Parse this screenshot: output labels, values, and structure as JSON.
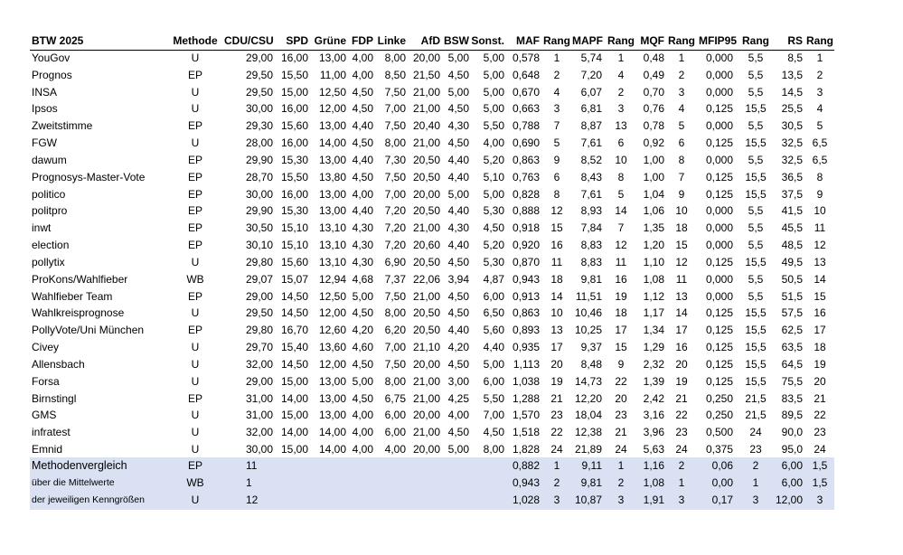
{
  "table": {
    "header": [
      "BTW 2025",
      "Methode",
      "CDU/CSU",
      "SPD",
      "Grüne",
      "FDP",
      "Linke",
      "AfD",
      "BSW",
      "Sonst.",
      "MAF",
      "Rang",
      "MAPF",
      "Rang",
      "MQF",
      "Rang",
      "MFIP95",
      "Rang",
      "RS",
      "Rang"
    ],
    "rows": [
      [
        "YouGov",
        "U",
        "29,00",
        "16,00",
        "13,00",
        "4,00",
        "8,00",
        "20,00",
        "5,00",
        "5,00",
        "0,578",
        "1",
        "5,74",
        "1",
        "0,48",
        "1",
        "0,000",
        "5,5",
        "8,5",
        "1"
      ],
      [
        "Prognos",
        "EP",
        "29,50",
        "15,50",
        "11,00",
        "4,00",
        "8,50",
        "21,50",
        "4,50",
        "5,00",
        "0,648",
        "2",
        "7,20",
        "4",
        "0,49",
        "2",
        "0,000",
        "5,5",
        "13,5",
        "2"
      ],
      [
        "INSA",
        "U",
        "29,50",
        "15,00",
        "12,50",
        "4,50",
        "7,50",
        "21,00",
        "5,00",
        "5,00",
        "0,670",
        "4",
        "6,07",
        "2",
        "0,70",
        "3",
        "0,000",
        "5,5",
        "14,5",
        "3"
      ],
      [
        "Ipsos",
        "U",
        "30,00",
        "16,00",
        "12,00",
        "4,50",
        "7,00",
        "21,00",
        "4,50",
        "5,00",
        "0,663",
        "3",
        "6,81",
        "3",
        "0,76",
        "4",
        "0,125",
        "15,5",
        "25,5",
        "4"
      ],
      [
        "Zweitstimme",
        "EP",
        "29,30",
        "15,60",
        "13,00",
        "4,40",
        "7,50",
        "20,40",
        "4,30",
        "5,50",
        "0,788",
        "7",
        "8,87",
        "13",
        "0,78",
        "5",
        "0,000",
        "5,5",
        "30,5",
        "5"
      ],
      [
        "FGW",
        "U",
        "28,00",
        "16,00",
        "14,00",
        "4,50",
        "8,00",
        "21,00",
        "4,50",
        "4,00",
        "0,690",
        "5",
        "7,61",
        "6",
        "0,92",
        "6",
        "0,125",
        "15,5",
        "32,5",
        "6,5"
      ],
      [
        "dawum",
        "EP",
        "29,90",
        "15,30",
        "13,00",
        "4,40",
        "7,30",
        "20,50",
        "4,40",
        "5,20",
        "0,863",
        "9",
        "8,52",
        "10",
        "1,00",
        "8",
        "0,000",
        "5,5",
        "32,5",
        "6,5"
      ],
      [
        "Prognosys-Master-Vote",
        "EP",
        "28,70",
        "15,50",
        "13,80",
        "4,50",
        "7,50",
        "20,50",
        "4,40",
        "5,10",
        "0,763",
        "6",
        "8,43",
        "8",
        "1,00",
        "7",
        "0,125",
        "15,5",
        "36,5",
        "8"
      ],
      [
        "politico",
        "EP",
        "30,00",
        "16,00",
        "13,00",
        "4,00",
        "7,00",
        "20,00",
        "5,00",
        "5,00",
        "0,828",
        "8",
        "7,61",
        "5",
        "1,04",
        "9",
        "0,125",
        "15,5",
        "37,5",
        "9"
      ],
      [
        "politpro",
        "EP",
        "29,90",
        "15,30",
        "13,00",
        "4,40",
        "7,20",
        "20,50",
        "4,40",
        "5,30",
        "0,888",
        "12",
        "8,93",
        "14",
        "1,06",
        "10",
        "0,000",
        "5,5",
        "41,5",
        "10"
      ],
      [
        "inwt",
        "EP",
        "30,50",
        "15,10",
        "13,10",
        "4,30",
        "7,20",
        "21,00",
        "4,30",
        "4,50",
        "0,918",
        "15",
        "7,84",
        "7",
        "1,35",
        "18",
        "0,000",
        "5,5",
        "45,5",
        "11"
      ],
      [
        "election",
        "EP",
        "30,10",
        "15,10",
        "13,10",
        "4,30",
        "7,20",
        "20,60",
        "4,40",
        "5,20",
        "0,920",
        "16",
        "8,83",
        "12",
        "1,20",
        "15",
        "0,000",
        "5,5",
        "48,5",
        "12"
      ],
      [
        "pollytix",
        "U",
        "29,80",
        "15,60",
        "13,10",
        "4,30",
        "6,90",
        "20,50",
        "4,50",
        "5,30",
        "0,870",
        "11",
        "8,83",
        "11",
        "1,10",
        "12",
        "0,125",
        "15,5",
        "49,5",
        "13"
      ],
      [
        "ProKons/Wahlfieber",
        "WB",
        "29,07",
        "15,07",
        "12,94",
        "4,68",
        "7,37",
        "22,06",
        "3,94",
        "4,87",
        "0,943",
        "18",
        "9,81",
        "16",
        "1,08",
        "11",
        "0,000",
        "5,5",
        "50,5",
        "14"
      ],
      [
        "Wahlfieber Team",
        "EP",
        "29,00",
        "14,50",
        "12,50",
        "5,00",
        "7,50",
        "21,00",
        "4,50",
        "6,00",
        "0,913",
        "14",
        "11,51",
        "19",
        "1,12",
        "13",
        "0,000",
        "5,5",
        "51,5",
        "15"
      ],
      [
        "Wahlkreisprognose",
        "U",
        "29,50",
        "14,50",
        "12,00",
        "4,50",
        "8,00",
        "20,50",
        "4,50",
        "6,50",
        "0,863",
        "10",
        "10,46",
        "18",
        "1,17",
        "14",
        "0,125",
        "15,5",
        "57,5",
        "16"
      ],
      [
        "PollyVote/Uni München",
        "EP",
        "29,80",
        "16,70",
        "12,60",
        "4,20",
        "6,20",
        "20,50",
        "4,40",
        "5,60",
        "0,893",
        "13",
        "10,25",
        "17",
        "1,34",
        "17",
        "0,125",
        "15,5",
        "62,5",
        "17"
      ],
      [
        "Civey",
        "U",
        "29,70",
        "15,40",
        "13,60",
        "4,60",
        "7,00",
        "21,10",
        "4,20",
        "4,40",
        "0,935",
        "17",
        "9,37",
        "15",
        "1,29",
        "16",
        "0,125",
        "15,5",
        "63,5",
        "18"
      ],
      [
        "Allensbach",
        "U",
        "32,00",
        "14,50",
        "12,00",
        "4,50",
        "7,50",
        "20,00",
        "4,50",
        "5,00",
        "1,113",
        "20",
        "8,48",
        "9",
        "2,32",
        "20",
        "0,125",
        "15,5",
        "64,5",
        "19"
      ],
      [
        "Forsa",
        "U",
        "29,00",
        "15,00",
        "13,00",
        "5,00",
        "8,00",
        "21,00",
        "3,00",
        "6,00",
        "1,038",
        "19",
        "14,73",
        "22",
        "1,39",
        "19",
        "0,125",
        "15,5",
        "75,5",
        "20"
      ],
      [
        "Birnstingl",
        "EP",
        "31,00",
        "14,00",
        "13,00",
        "4,50",
        "6,75",
        "21,00",
        "4,25",
        "5,50",
        "1,288",
        "21",
        "12,20",
        "20",
        "2,42",
        "21",
        "0,250",
        "21,5",
        "83,5",
        "21"
      ],
      [
        "GMS",
        "U",
        "31,00",
        "15,00",
        "13,00",
        "4,00",
        "6,00",
        "20,00",
        "4,00",
        "7,00",
        "1,570",
        "23",
        "18,04",
        "23",
        "3,16",
        "22",
        "0,250",
        "21,5",
        "89,5",
        "22"
      ],
      [
        "infratest",
        "U",
        "32,00",
        "14,00",
        "14,00",
        "4,00",
        "6,00",
        "21,00",
        "4,50",
        "4,50",
        "1,518",
        "22",
        "12,38",
        "21",
        "3,96",
        "23",
        "0,500",
        "24",
        "90,0",
        "23"
      ],
      [
        "Emnid",
        "U",
        "30,00",
        "15,00",
        "14,00",
        "4,00",
        "4,00",
        "20,00",
        "5,00",
        "8,00",
        "1,828",
        "24",
        "21,89",
        "24",
        "5,63",
        "24",
        "0,375",
        "23",
        "95,0",
        "24"
      ]
    ],
    "summary": [
      [
        "Methodenvergleich",
        "EP",
        "11",
        "0,882",
        "1",
        "9,11",
        "1",
        "1,16",
        "2",
        "0,06",
        "2",
        "6,00",
        "1,5"
      ],
      [
        "über die Mittelwerte",
        "WB",
        "1",
        "0,943",
        "2",
        "9,81",
        "2",
        "1,08",
        "1",
        "0,00",
        "1",
        "6,00",
        "1,5"
      ],
      [
        "der jeweiligen Kenngrößen",
        "U",
        "12",
        "1,028",
        "3",
        "10,87",
        "3",
        "1,91",
        "3",
        "0,17",
        "3",
        "12,00",
        "3"
      ]
    ]
  }
}
